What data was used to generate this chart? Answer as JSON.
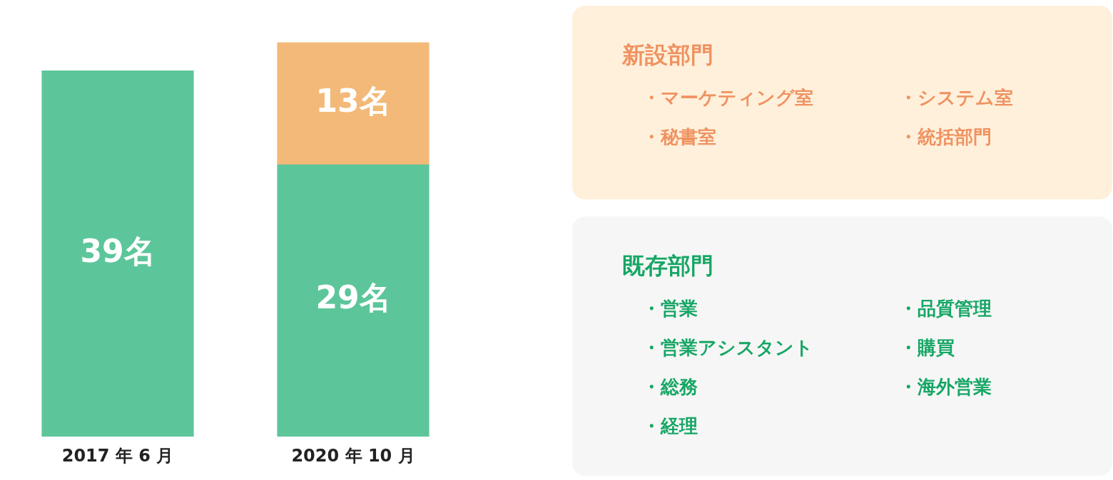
{
  "chart_data": [
    {
      "type": "bar",
      "stacked": true,
      "categories": [
        "2017 年 6 月",
        "2020 年 10 月"
      ],
      "grid": false,
      "tick_labels": "x",
      "series": [
        {
          "color": "#5cc69a",
          "values": [
            39,
            29
          ],
          "value_labels": [
            "39名",
            "29名"
          ]
        },
        {
          "color": "#f3b978",
          "values": [
            null,
            13
          ],
          "value_labels": [
            null,
            "13名"
          ]
        }
      ]
    },
    {
      "type": "other",
      "title": "新設部門",
      "color": "#ef9260",
      "annotations": [
        "・マーケティング室",
        "・システム室",
        "・秘書室",
        "・統括部門"
      ]
    },
    {
      "type": "other",
      "title": "既存部門",
      "color": "#16a665",
      "annotations": [
        "・営業",
        "・品質管理",
        "・営業アシスタント",
        "・購買",
        "・総務",
        "・海外営業",
        "・経理"
      ]
    }
  ]
}
